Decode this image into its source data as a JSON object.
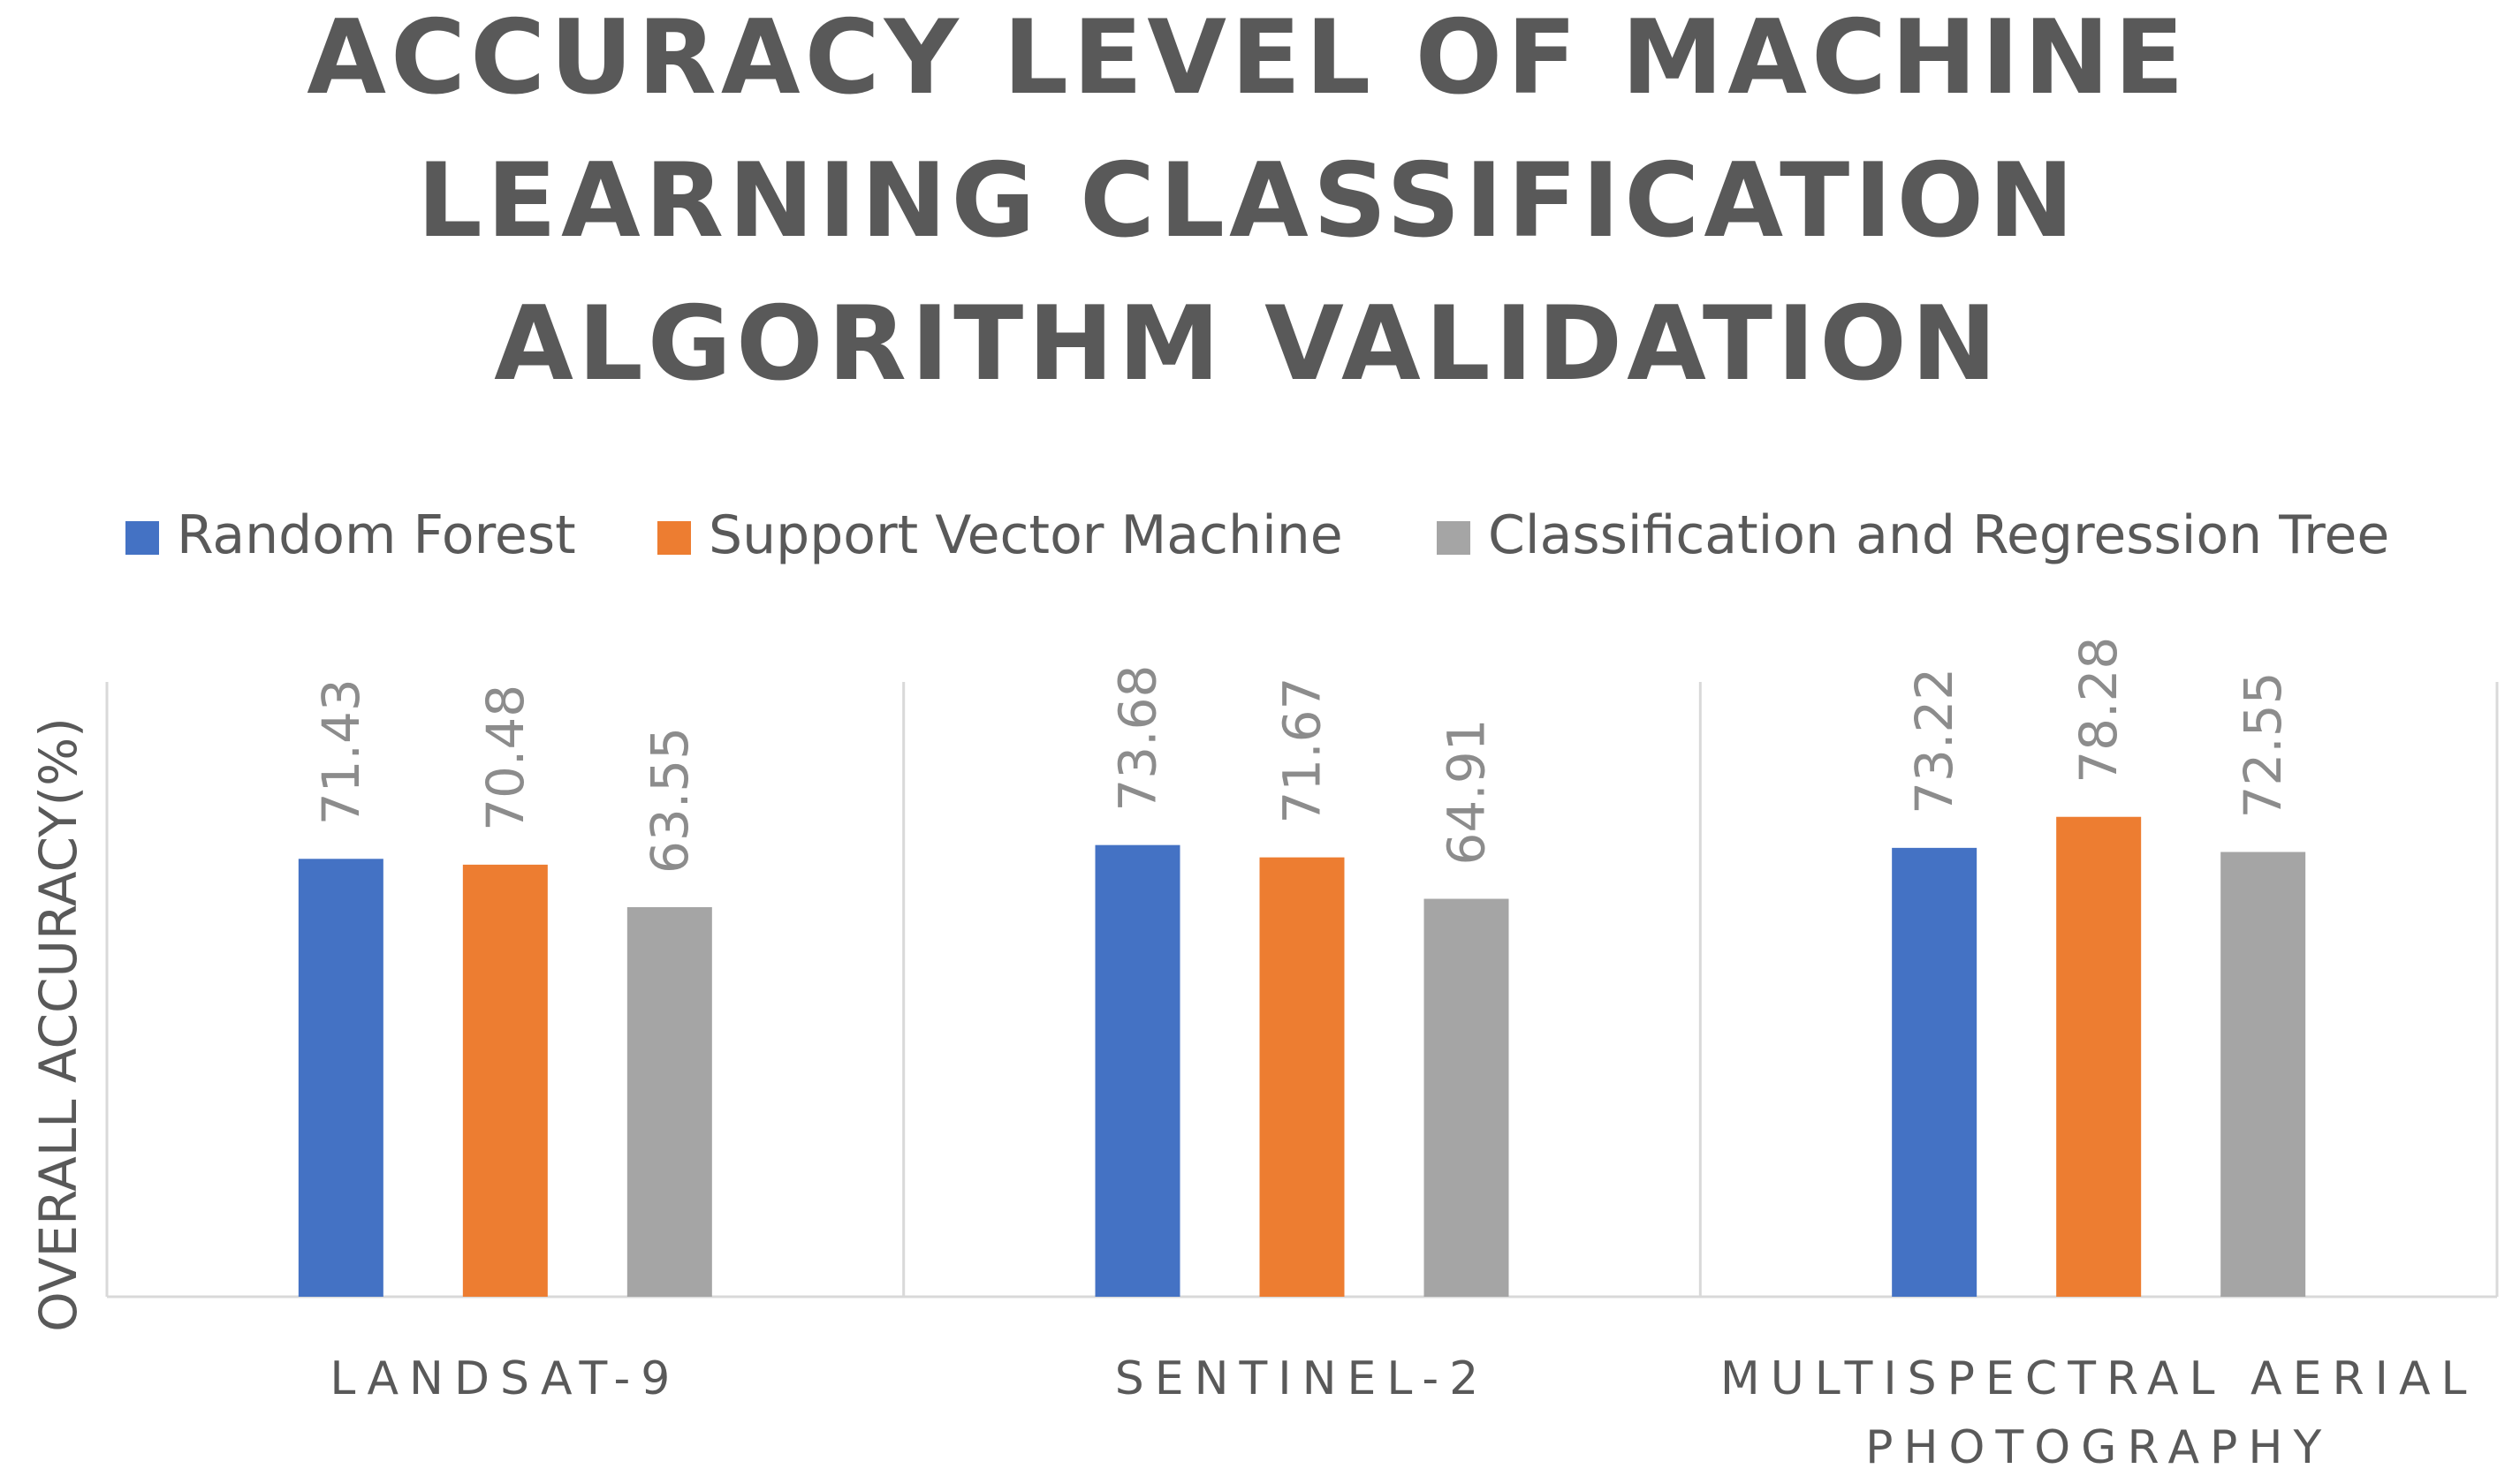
{
  "chart_data": {
    "type": "bar",
    "title_lines": [
      "ACCURACY LEVEL OF MACHINE",
      "LEARNING CLASSIFICATION",
      "ALGORITHM VALIDATION"
    ],
    "ylabel": "OVERALL ACCURACY(%)",
    "categories": [
      [
        "LANDSAT-9"
      ],
      [
        "SENTINEL-2"
      ],
      [
        "MULTISPECTRAL AERIAL",
        "PHOTOGRAPHY"
      ]
    ],
    "series": [
      {
        "name": "Random Forest",
        "color": "#4472c4",
        "values": [
          71.43,
          73.68,
          73.22
        ]
      },
      {
        "name": "Support Vector Machine",
        "color": "#ed7d31",
        "values": [
          70.48,
          71.67,
          78.28
        ]
      },
      {
        "name": "Classification and Regression Tree",
        "color": "#a5a5a5",
        "values": [
          63.55,
          64.91,
          72.55
        ]
      }
    ],
    "value_labels": [
      [
        "71.43",
        "73.68",
        "73.22"
      ],
      [
        "70.48",
        "71.67",
        "78.28"
      ],
      [
        "63.55",
        "64.91",
        "72.55"
      ]
    ],
    "ylim": [
      0,
      100
    ],
    "grid": false,
    "legend_position": "top"
  }
}
